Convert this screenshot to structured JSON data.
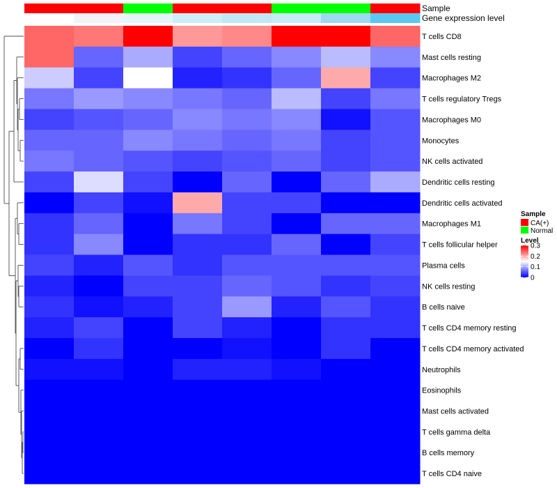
{
  "chart_data": {
    "type": "heatmap",
    "annotation_rows": [
      {
        "label": "Sample",
        "colors": [
          "#FF0000",
          "#FF0000",
          "#00FF00",
          "#FF0000",
          "#FF0000",
          "#00FF00",
          "#00FF00",
          "#FF0000"
        ]
      },
      {
        "label": "Gene expression level",
        "colors": [
          "#FFFFFF",
          "#F2F2F7",
          "#E4F6FA",
          "#CDEEF8",
          "#C0E9F5",
          "#C6ECF7",
          "#9DD9F0",
          "#5AC8F0"
        ]
      }
    ],
    "rows": [
      {
        "label": "T cells CD8",
        "values": [
          0.24,
          0.23,
          0.3,
          0.21,
          0.22,
          0.3,
          0.3,
          0.24
        ]
      },
      {
        "label": "Mast cells resting",
        "values": [
          0.24,
          0.06,
          0.1,
          0.04,
          0.06,
          0.08,
          0.11,
          0.08
        ]
      },
      {
        "label": "Macrophages M2",
        "values": [
          0.12,
          0.04,
          0.15,
          0.02,
          0.03,
          0.06,
          0.2,
          0.04
        ]
      },
      {
        "label": "T cells regulatory  Tregs",
        "values": [
          0.07,
          0.09,
          0.08,
          0.07,
          0.06,
          0.11,
          0.04,
          0.07
        ]
      },
      {
        "label": "Macrophages M0",
        "values": [
          0.04,
          0.05,
          0.06,
          0.08,
          0.07,
          0.08,
          0.01,
          0.05
        ]
      },
      {
        "label": "Monocytes",
        "values": [
          0.06,
          0.06,
          0.08,
          0.07,
          0.06,
          0.07,
          0.04,
          0.05
        ]
      },
      {
        "label": "NK cells activated",
        "values": [
          0.07,
          0.06,
          0.05,
          0.04,
          0.05,
          0.06,
          0.04,
          0.05
        ]
      },
      {
        "label": "Dendritic cells resting",
        "values": [
          0.04,
          0.13,
          0.04,
          0.0,
          0.06,
          0.0,
          0.06,
          0.1
        ]
      },
      {
        "label": "Dendritic cells activated",
        "values": [
          0.0,
          0.04,
          0.01,
          0.2,
          0.04,
          0.04,
          0.0,
          0.0
        ]
      },
      {
        "label": "Macrophages M1",
        "values": [
          0.03,
          0.06,
          0.0,
          0.07,
          0.04,
          0.0,
          0.06,
          0.06
        ]
      },
      {
        "label": "T cells follicular helper",
        "values": [
          0.03,
          0.08,
          0.0,
          0.03,
          0.03,
          0.06,
          0.0,
          0.04
        ]
      },
      {
        "label": "Plasma cells",
        "values": [
          0.04,
          0.02,
          0.05,
          0.03,
          0.05,
          0.05,
          0.05,
          0.05
        ]
      },
      {
        "label": "NK cells resting",
        "values": [
          0.02,
          0.0,
          0.04,
          0.04,
          0.06,
          0.05,
          0.03,
          0.04
        ]
      },
      {
        "label": "B cells naive",
        "values": [
          0.03,
          0.01,
          0.02,
          0.04,
          0.09,
          0.02,
          0.05,
          0.03
        ]
      },
      {
        "label": "T cells CD4 memory resting",
        "values": [
          0.02,
          0.04,
          0.0,
          0.04,
          0.02,
          0.0,
          0.03,
          0.03
        ]
      },
      {
        "label": "T cells CD4 memory activated",
        "values": [
          0.0,
          0.03,
          0.0,
          0.0,
          0.01,
          0.0,
          0.03,
          0.0
        ]
      },
      {
        "label": "Neutrophils",
        "values": [
          0.01,
          0.01,
          0.0,
          0.02,
          0.02,
          0.01,
          0.0,
          0.0
        ]
      },
      {
        "label": "Eosinophils",
        "values": [
          0,
          0,
          0,
          0,
          0,
          0,
          0,
          0
        ]
      },
      {
        "label": "Mast cells activated",
        "values": [
          0,
          0,
          0,
          0,
          0,
          0,
          0,
          0
        ]
      },
      {
        "label": "T cells gamma delta",
        "values": [
          0,
          0,
          0,
          0,
          0,
          0,
          0,
          0
        ]
      },
      {
        "label": "B cells memory",
        "values": [
          0,
          0,
          0,
          0,
          0,
          0,
          0,
          0
        ]
      },
      {
        "label": "T cells CD4 naive",
        "values": [
          0,
          0,
          0,
          0,
          0,
          0,
          0,
          0
        ]
      }
    ],
    "legend_sample": {
      "title": "Sample",
      "items": [
        {
          "label": "CA(+)",
          "color": "#FF0000"
        },
        {
          "label": "Normal",
          "color": "#00FF00"
        }
      ]
    },
    "legend_level": {
      "title": "Level",
      "range": [
        0,
        0.3
      ],
      "ticks": [
        {
          "label": "0.3",
          "value": 0.3
        },
        {
          "label": "0.2",
          "value": 0.2
        },
        {
          "label": "0.1",
          "value": 0.1
        },
        {
          "label": "0",
          "value": 0
        }
      ],
      "colors": {
        "low": "#0000FF",
        "mid": "#FFFFFF",
        "high": "#FF0000"
      }
    },
    "row_dendrogram": true
  }
}
